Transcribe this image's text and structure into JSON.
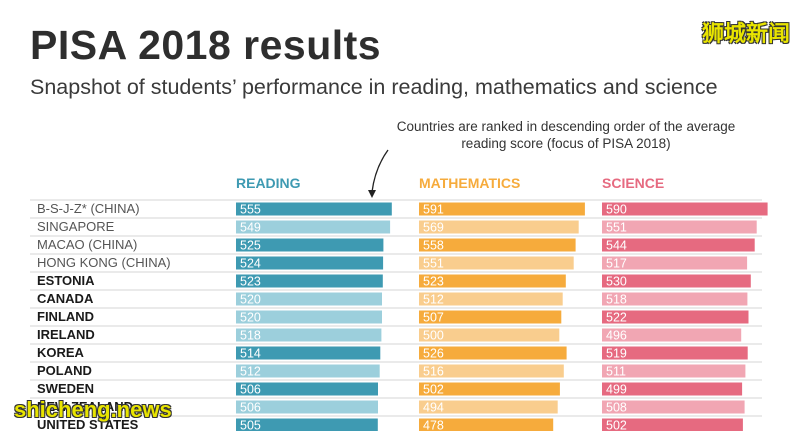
{
  "title": "PISA 2018 results",
  "subtitle": "Snapshot of students’ performance in reading, mathematics and science",
  "brand": "狮城新闻",
  "watermark": "shicheng.news",
  "annotation": "Countries are ranked in descending order of the average reading score (focus of PISA 2018)",
  "colors": {
    "reading_dark": "#3e9ab2",
    "reading_light": "#9ccfdc",
    "math_dark": "#f6ab3c",
    "math_light": "#f9cd8e",
    "science_dark": "#e66a80",
    "science_light": "#f1a6b3"
  },
  "chart_data": {
    "type": "bar",
    "title": "PISA 2018 results",
    "xlabel": "",
    "ylabel": "",
    "xlim": [
      0,
      600
    ],
    "categories": [
      "B-S-J-Z* (CHINA)",
      "SINGAPORE",
      "MACAO (CHINA)",
      "HONG KONG (CHINA)",
      "ESTONIA",
      "CANADA",
      "FINLAND",
      "IRELAND",
      "KOREA",
      "POLAND",
      "SWEDEN",
      "NEW ZEALAND",
      "UNITED STATES"
    ],
    "significant": [
      false,
      false,
      false,
      false,
      true,
      true,
      true,
      true,
      true,
      true,
      true,
      true,
      true
    ],
    "series": [
      {
        "name": "READING",
        "values": [
          555,
          549,
          525,
          524,
          523,
          520,
          520,
          518,
          514,
          512,
          506,
          506,
          505
        ],
        "shade": [
          "dark",
          "light",
          "dark",
          "dark",
          "dark",
          "light",
          "light",
          "light",
          "dark",
          "light",
          "dark",
          "light",
          "dark"
        ]
      },
      {
        "name": "MATHEMATICS",
        "values": [
          591,
          569,
          558,
          551,
          523,
          512,
          507,
          500,
          526,
          516,
          502,
          494,
          478
        ],
        "shade": [
          "dark",
          "light",
          "dark",
          "light",
          "dark",
          "light",
          "dark",
          "light",
          "dark",
          "light",
          "dark",
          "light",
          "dark"
        ]
      },
      {
        "name": "SCIENCE",
        "values": [
          590,
          551,
          544,
          517,
          530,
          518,
          522,
          496,
          519,
          511,
          499,
          508,
          502
        ],
        "shade": [
          "dark",
          "light",
          "dark",
          "light",
          "dark",
          "light",
          "dark",
          "light",
          "dark",
          "light",
          "dark",
          "light",
          "dark"
        ]
      }
    ]
  }
}
